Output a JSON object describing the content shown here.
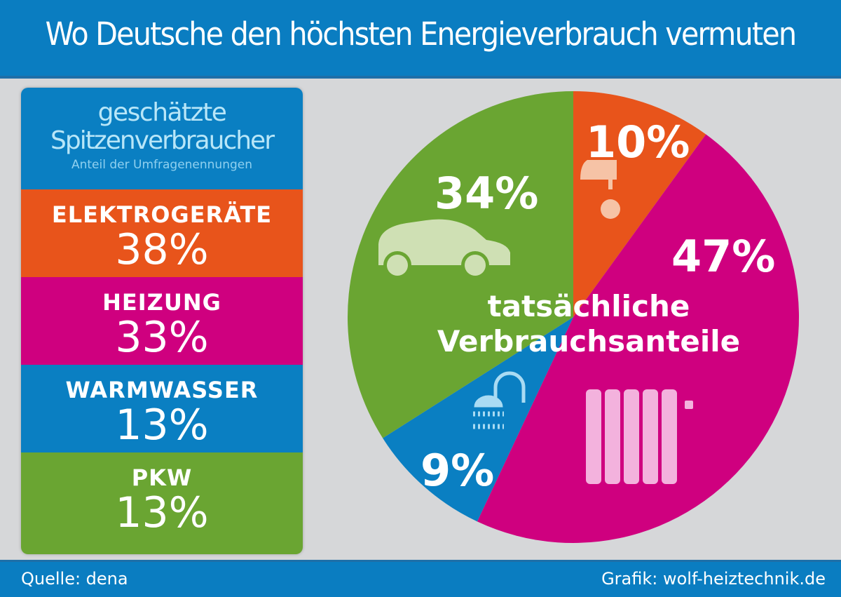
{
  "title": "Wo Deutsche den höchsten Energieverbrauch vermuten",
  "panel": {
    "heading_line1": "geschätzte",
    "heading_line2": "Spitzenverbraucher",
    "subheading": "Anteil der Umfragenennungen",
    "items": [
      {
        "name": "ELEKTROGERÄTE",
        "value": "38%",
        "color": "#e8541b"
      },
      {
        "name": "HEIZUNG",
        "value": "33%",
        "color": "#cf007f"
      },
      {
        "name": "WARMWASSER",
        "value": "13%",
        "color": "#0a7fc2"
      },
      {
        "name": "PKW",
        "value": "13%",
        "color": "#6aa532"
      }
    ]
  },
  "footer": {
    "source": "Quelle: dena",
    "credit": "Grafik: wolf-heiztechnik.de"
  },
  "chart_data": {
    "type": "pie",
    "title": "",
    "center_label_line1": "tatsächliche",
    "center_label_line2": "Verbrauchsanteile",
    "slices": [
      {
        "category": "Elektrogeräte",
        "value": 10,
        "label": "10%",
        "color": "#e8541b",
        "icon": "iron-icon"
      },
      {
        "category": "Heizung",
        "value": 47,
        "label": "47%",
        "color": "#cf007f",
        "icon": "radiator-icon"
      },
      {
        "category": "Warmwasser",
        "value": 9,
        "label": "9%",
        "color": "#0a7fc2",
        "icon": "shower-icon"
      },
      {
        "category": "PKW",
        "value": 34,
        "label": "34%",
        "color": "#6aa532",
        "icon": "car-icon"
      }
    ],
    "start": "top",
    "direction": "clockwise"
  }
}
